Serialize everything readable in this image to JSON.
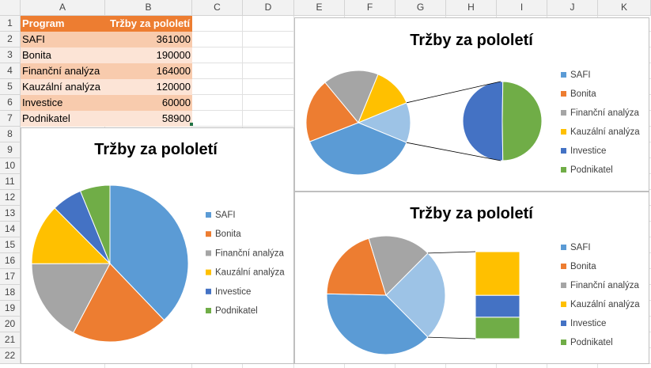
{
  "columns": [
    "A",
    "B",
    "C",
    "D",
    "E",
    "F",
    "G",
    "H",
    "I",
    "J",
    "K"
  ],
  "rows": [
    "1",
    "2",
    "3",
    "4",
    "5",
    "6",
    "7",
    "8",
    "9",
    "10",
    "11",
    "12",
    "13",
    "14",
    "15",
    "16",
    "17",
    "18",
    "19",
    "20",
    "21",
    "22"
  ],
  "table": {
    "headers": [
      "Program",
      "Tržby za pololetí"
    ],
    "rows": [
      {
        "program": "SAFI",
        "value": 361000
      },
      {
        "program": "Bonita",
        "value": 190000
      },
      {
        "program": "Finanční analýza",
        "value": 164000
      },
      {
        "program": "Kauzální analýza",
        "value": 120000
      },
      {
        "program": "Investice",
        "value": 60000
      },
      {
        "program": "Podnikatel",
        "value": 58900
      }
    ]
  },
  "chart_data": [
    {
      "type": "pie",
      "title": "Tržby za pololetí",
      "categories": [
        "SAFI",
        "Bonita",
        "Finanční analýza",
        "Kauzální analýza",
        "Investice",
        "Podnikatel"
      ],
      "values": [
        361000,
        190000,
        164000,
        120000,
        60000,
        58900
      ],
      "legend": "right"
    },
    {
      "type": "pie-of-pie",
      "title": "Tržby za pololetí",
      "categories": [
        "SAFI",
        "Bonita",
        "Finanční analýza",
        "Kauzální analýza",
        "Investice",
        "Podnikatel"
      ],
      "values": [
        361000,
        190000,
        164000,
        120000,
        60000,
        58900
      ],
      "secondary_plot": [
        "Investice",
        "Podnikatel"
      ],
      "legend": "right"
    },
    {
      "type": "bar-of-pie",
      "title": "Tržby za pololetí",
      "categories": [
        "SAFI",
        "Bonita",
        "Finanční analýza",
        "Kauzální analýza",
        "Investice",
        "Podnikatel"
      ],
      "values": [
        361000,
        190000,
        164000,
        120000,
        60000,
        58900
      ],
      "secondary_plot": [
        "Kauzální analýza",
        "Investice",
        "Podnikatel"
      ],
      "legend": "right"
    }
  ],
  "colors": {
    "SAFI": "#5b9bd5",
    "Bonita": "#ed7d31",
    "Finanční analýza": "#a5a5a5",
    "Kauzální analýza": "#ffc000",
    "Investice": "#4472c4",
    "Podnikatel": "#70ad47",
    "other_slice": "#9dc3e6",
    "header_fill": "#ed7d31"
  }
}
